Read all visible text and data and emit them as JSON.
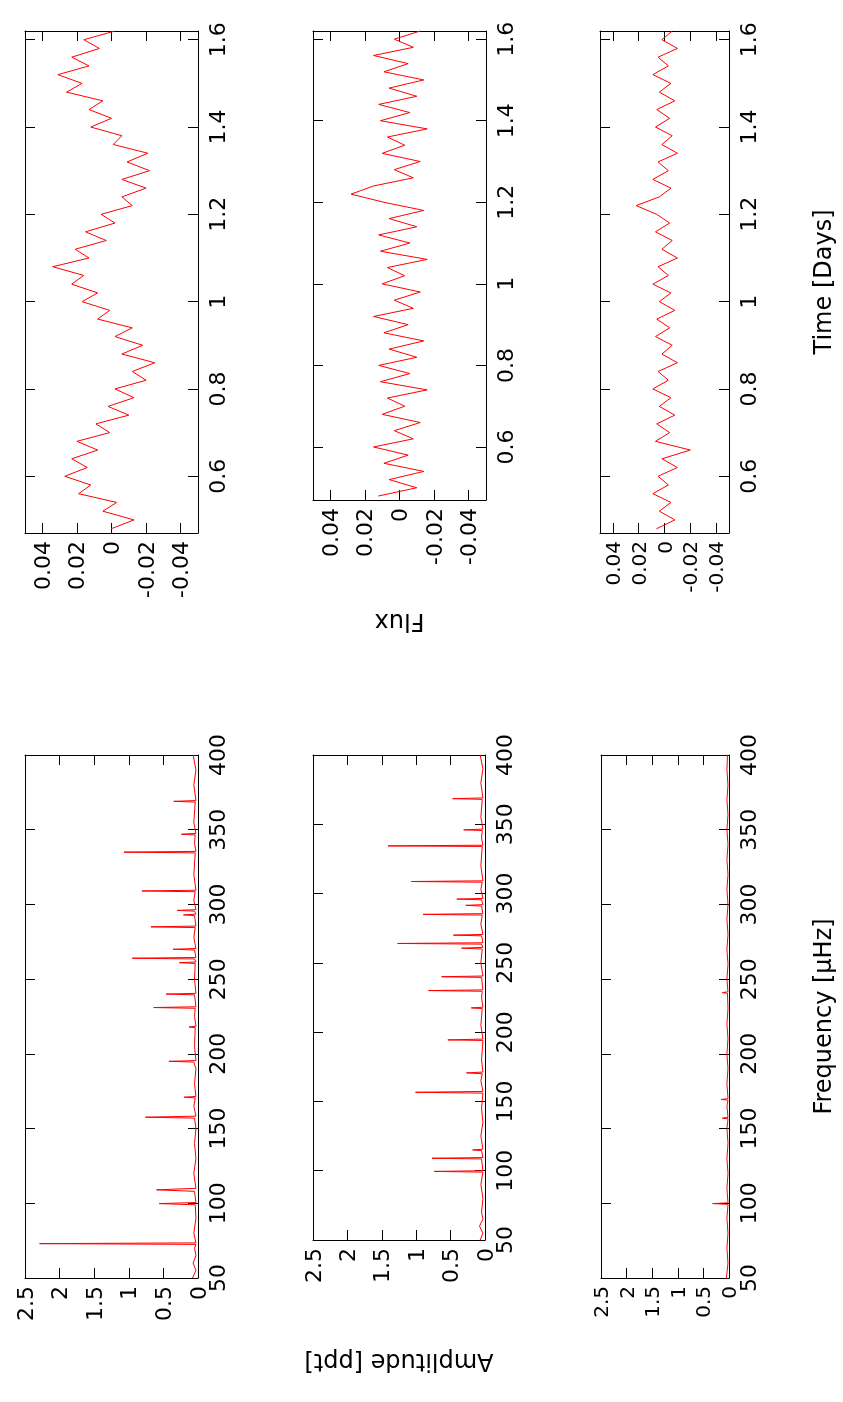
{
  "chart_data": [
    {
      "type": "line",
      "xlim": [
        0.05,
        -0.05
      ],
      "ylim": [
        0.47,
        1.62
      ],
      "xticks": [
        0.04,
        0.02,
        0,
        -0.02,
        -0.04
      ],
      "yticks": [
        0.6,
        0.8,
        1,
        1.2,
        1.4,
        1.6
      ],
      "series": [
        {
          "color": "#ff0000",
          "values": [
            0.48,
            0.5,
            0.52,
            0.54,
            0.56,
            0.58,
            0.6,
            0.62,
            0.64,
            0.66,
            0.68,
            0.7,
            0.72,
            0.74,
            0.76,
            0.78,
            0.8,
            0.82,
            0.84,
            0.86,
            0.88,
            0.9,
            0.92,
            0.94,
            0.96,
            0.98,
            1,
            1.02,
            1.04,
            1.06,
            1.08,
            1.1,
            1.12,
            1.14,
            1.16,
            1.18,
            1.2,
            1.22,
            1.24,
            1.26,
            1.28,
            1.3,
            1.32,
            1.34,
            1.36,
            1.38,
            1.4,
            1.42,
            1.44,
            1.46,
            1.48,
            1.5,
            1.52,
            1.54,
            1.56,
            1.58,
            1.6,
            1.62
          ],
          "x": [
            0,
            -0.013,
            0.005,
            -0.003,
            0.019,
            0.012,
            0.027,
            0.014,
            0.023,
            0.008,
            0.02,
            0.001,
            0.009,
            -0.01,
            0.002,
            -0.013,
            -0.002,
            -0.02,
            -0.012,
            -0.025,
            -0.006,
            -0.018,
            -0.002,
            -0.012,
            0.008,
            0.001,
            0.017,
            0.008,
            0.023,
            0.016,
            0.034,
            0.013,
            0.021,
            0.003,
            0.015,
            -0.002,
            0.006,
            -0.012,
            -0.006,
            -0.02,
            -0.006,
            -0.022,
            -0.009,
            -0.021,
            -0.001,
            -0.006,
            0.012,
            0,
            0.013,
            0.005,
            0.026,
            0.017,
            0.031,
            0.013,
            0.023,
            0.007,
            0.016,
            -0.002
          ]
        }
      ]
    },
    {
      "type": "line",
      "xlim": [
        0.05,
        -0.05
      ],
      "ylim": [
        0.47,
        1.62
      ],
      "xticks": [
        0.04,
        0.02,
        0,
        -0.02,
        -0.04
      ],
      "yticks": [
        0.6,
        0.8,
        1,
        1.2,
        1.4,
        1.6
      ],
      "xlabel": "Flux",
      "series": [
        {
          "color": "#ff0000",
          "values": [
            0.48,
            0.5,
            0.52,
            0.54,
            0.56,
            0.58,
            0.6,
            0.62,
            0.64,
            0.66,
            0.68,
            0.7,
            0.72,
            0.74,
            0.76,
            0.78,
            0.8,
            0.82,
            0.84,
            0.86,
            0.88,
            0.9,
            0.92,
            0.94,
            0.96,
            0.98,
            1,
            1.02,
            1.04,
            1.06,
            1.08,
            1.1,
            1.12,
            1.14,
            1.16,
            1.18,
            1.2,
            1.22,
            1.24,
            1.26,
            1.28,
            1.3,
            1.32,
            1.34,
            1.36,
            1.38,
            1.4,
            1.42,
            1.44,
            1.46,
            1.48,
            1.5,
            1.52,
            1.54,
            1.56,
            1.58,
            1.6,
            1.62
          ],
          "x": [
            0.012,
            -0.01,
            0.006,
            -0.014,
            0.009,
            -0.005,
            0.015,
            -0.008,
            0.003,
            -0.012,
            0.01,
            -0.003,
            0.007,
            -0.016,
            0.011,
            -0.006,
            0.012,
            -0.01,
            0.006,
            -0.014,
            0.009,
            -0.005,
            0.015,
            -0.008,
            0.003,
            -0.012,
            0.01,
            -0.003,
            0.007,
            -0.016,
            0.011,
            -0.006,
            0.012,
            -0.01,
            0.006,
            -0.014,
            0.009,
            0.028,
            0.015,
            -0.008,
            0.003,
            -0.012,
            0.01,
            -0.003,
            0.007,
            -0.016,
            0.011,
            -0.006,
            0.012,
            -0.01,
            0.006,
            -0.014,
            0.009,
            -0.005,
            0.015,
            -0.008,
            0.003,
            -0.012
          ]
        }
      ]
    },
    {
      "type": "line",
      "xlim": [
        0.05,
        -0.05
      ],
      "ylim": [
        0.47,
        1.62
      ],
      "xticks": [
        0.04,
        0.02,
        0,
        -0.02,
        -0.04
      ],
      "yticks": [
        0.6,
        0.8,
        1,
        1.2,
        1.4,
        1.6
      ],
      "ylabel": "Time [Days]",
      "series": [
        {
          "color": "#ff0000",
          "values": [
            0.48,
            0.5,
            0.52,
            0.54,
            0.56,
            0.58,
            0.6,
            0.62,
            0.64,
            0.66,
            0.68,
            0.7,
            0.72,
            0.74,
            0.76,
            0.78,
            0.8,
            0.82,
            0.84,
            0.86,
            0.88,
            0.9,
            0.92,
            0.94,
            0.96,
            0.98,
            1,
            1.02,
            1.04,
            1.06,
            1.08,
            1.1,
            1.12,
            1.14,
            1.16,
            1.18,
            1.2,
            1.22,
            1.24,
            1.26,
            1.28,
            1.3,
            1.32,
            1.34,
            1.36,
            1.38,
            1.4,
            1.42,
            1.44,
            1.46,
            1.48,
            1.5,
            1.52,
            1.54,
            1.56,
            1.58,
            1.6,
            1.62
          ],
          "x": [
            0.006,
            -0.008,
            0.004,
            -0.005,
            0.009,
            -0.003,
            0.005,
            -0.01,
            0.002,
            -0.02,
            0.007,
            -0.004,
            0.006,
            -0.008,
            0.004,
            -0.005,
            0.009,
            -0.003,
            0.005,
            -0.01,
            0.002,
            -0.006,
            0.007,
            -0.004,
            0.006,
            -0.008,
            0.004,
            -0.005,
            0.009,
            -0.003,
            0.005,
            -0.01,
            0.002,
            -0.006,
            0.007,
            -0.004,
            0.006,
            0.022,
            0.004,
            -0.005,
            0.009,
            -0.003,
            0.005,
            -0.01,
            0.002,
            -0.006,
            0.007,
            -0.004,
            0.006,
            -0.008,
            0.004,
            -0.005,
            0.009,
            -0.003,
            0.005,
            -0.01,
            0.002,
            -0.006
          ]
        }
      ]
    },
    {
      "type": "line",
      "xlim": [
        2.5,
        0
      ],
      "ylim": [
        50,
        400
      ],
      "xticks": [
        2.5,
        2,
        1.5,
        1,
        0.5,
        0
      ],
      "yticks": [
        50,
        100,
        150,
        200,
        250,
        300,
        350,
        400
      ],
      "series": [
        {
          "color": "#ff0000",
          "values": [
            50,
            55,
            60,
            65,
            70,
            72.5,
            73,
            73.5,
            80,
            90,
            99,
            99.8,
            100.5,
            108,
            109,
            110,
            120,
            130,
            140,
            150,
            157,
            157.6,
            158.3,
            165,
            170.5,
            171,
            171.5,
            180,
            190,
            194.5,
            195,
            195.5,
            205,
            217.5,
            218,
            218.5,
            225,
            230.5,
            231,
            231.5,
            239.5,
            240,
            240.5,
            250,
            260.5,
            261,
            261.5,
            263.5,
            264,
            264.5,
            269.5,
            270,
            270.5,
            278,
            284.5,
            285,
            285.5,
            292.5,
            293,
            293.5,
            295.5,
            296,
            296.5,
            303,
            308.5,
            309,
            309.5,
            320,
            334.5,
            335,
            335.5,
            341,
            346.5,
            347,
            347.5,
            355,
            368.5,
            369,
            369.5,
            380,
            390,
            400
          ],
          "x": [
            0.08,
            0.03,
            0.07,
            0.03,
            0.05,
            0.03,
            2.29,
            0.03,
            0.06,
            0.03,
            0.04,
            0.56,
            0.03,
            0.05,
            0.6,
            0.03,
            0.06,
            0.03,
            0.05,
            0.03,
            0.05,
            0.76,
            0.03,
            0.06,
            0.04,
            0.2,
            0.03,
            0.05,
            0.03,
            0.06,
            0.42,
            0.03,
            0.05,
            0.04,
            0.13,
            0.03,
            0.05,
            0.04,
            0.64,
            0.03,
            0.05,
            0.46,
            0.03,
            0.05,
            0.04,
            0.27,
            0.03,
            0.05,
            0.95,
            0.03,
            0.05,
            0.36,
            0.03,
            0.06,
            0.04,
            0.68,
            0.03,
            0.05,
            0.21,
            0.03,
            0.05,
            0.3,
            0.03,
            0.06,
            0.04,
            0.81,
            0.03,
            0.06,
            0.04,
            1.07,
            0.03,
            0.05,
            0.04,
            0.24,
            0.03,
            0.06,
            0.04,
            0.35,
            0.03,
            0.06,
            0.03,
            0.07
          ]
        }
      ]
    },
    {
      "type": "line",
      "xlim": [
        2.5,
        0
      ],
      "ylim": [
        50,
        400
      ],
      "xticks": [
        2.5,
        2,
        1.5,
        1,
        0.5,
        0
      ],
      "yticks": [
        50,
        100,
        150,
        200,
        250,
        300,
        350,
        400
      ],
      "xlabel": "Amplitude [ppt]",
      "series": [
        {
          "color": "#ff0000",
          "values": [
            50,
            55,
            60,
            65,
            70,
            80,
            90,
            99,
            99.5,
            100,
            108.5,
            109,
            109.5,
            114.5,
            115,
            115.5,
            125,
            135,
            145,
            156,
            156.6,
            157.2,
            165,
            170,
            170.6,
            171.2,
            180,
            194,
            194.4,
            195,
            205,
            217,
            217.5,
            218,
            225,
            229.5,
            230,
            230.5,
            239.5,
            240,
            240.5,
            250,
            260,
            260.6,
            261.2,
            263.5,
            264,
            264.5,
            269.5,
            270,
            270.5,
            278,
            284.5,
            285,
            285.5,
            291,
            291.5,
            292,
            295.5,
            296,
            296.5,
            303,
            308.2,
            308.7,
            309.2,
            320,
            334,
            334.4,
            334.9,
            340,
            345.5,
            346,
            346.5,
            355,
            368,
            368.5,
            369,
            380,
            390,
            400
          ],
          "x": [
            0.07,
            0.03,
            0.08,
            0.03,
            0.05,
            0.03,
            0.06,
            0.03,
            0.74,
            0.03,
            0.05,
            0.77,
            0.03,
            0.05,
            0.18,
            0.03,
            0.06,
            0.03,
            0.05,
            0.03,
            1.01,
            0.03,
            0.06,
            0.04,
            0.27,
            0.03,
            0.05,
            0.03,
            0.54,
            0.03,
            0.06,
            0.04,
            0.2,
            0.03,
            0.05,
            0.04,
            0.82,
            0.03,
            0.05,
            0.63,
            0.03,
            0.06,
            0.04,
            0.34,
            0.03,
            0.05,
            1.27,
            0.03,
            0.05,
            0.46,
            0.03,
            0.06,
            0.04,
            0.9,
            0.03,
            0.05,
            0.28,
            0.03,
            0.05,
            0.41,
            0.03,
            0.06,
            0.04,
            1.07,
            0.03,
            0.06,
            0.04,
            1.41,
            0.03,
            0.05,
            0.04,
            0.31,
            0.03,
            0.06,
            0.04,
            0.47,
            0.03,
            0.06,
            0.03,
            0.07
          ]
        }
      ]
    },
    {
      "type": "line",
      "xlim": [
        2.5,
        0
      ],
      "ylim": [
        50,
        400
      ],
      "xticks": [
        2.5,
        2,
        1.5,
        1,
        0.5,
        0
      ],
      "yticks": [
        50,
        100,
        150,
        200,
        250,
        300,
        350,
        400
      ],
      "ylabel": "Frequency [μHz]",
      "series": [
        {
          "color": "#ff0000",
          "values": [
            50,
            60,
            70,
            80,
            90,
            99.3,
            99.8,
            100.3,
            110,
            120,
            130,
            140,
            150,
            156.5,
            157,
            157.5,
            165,
            169,
            169.5,
            170,
            180,
            190,
            200,
            210,
            220,
            230,
            240.5,
            241,
            241.5,
            250,
            260,
            270,
            280,
            290,
            300,
            310,
            320,
            330,
            340,
            350,
            360,
            370,
            380,
            390,
            400
          ],
          "x": [
            0.05,
            0.02,
            0.04,
            0.02,
            0.04,
            0.02,
            0.32,
            0.02,
            0.04,
            0.02,
            0.04,
            0.02,
            0.04,
            0.02,
            0.13,
            0.02,
            0.04,
            0.02,
            0.15,
            0.02,
            0.04,
            0.02,
            0.04,
            0.02,
            0.04,
            0.02,
            0.03,
            0.13,
            0.02,
            0.04,
            0.02,
            0.04,
            0.02,
            0.04,
            0.02,
            0.04,
            0.02,
            0.04,
            0.02,
            0.04,
            0.02,
            0.04,
            0.02,
            0.04,
            0.03
          ]
        }
      ]
    }
  ]
}
